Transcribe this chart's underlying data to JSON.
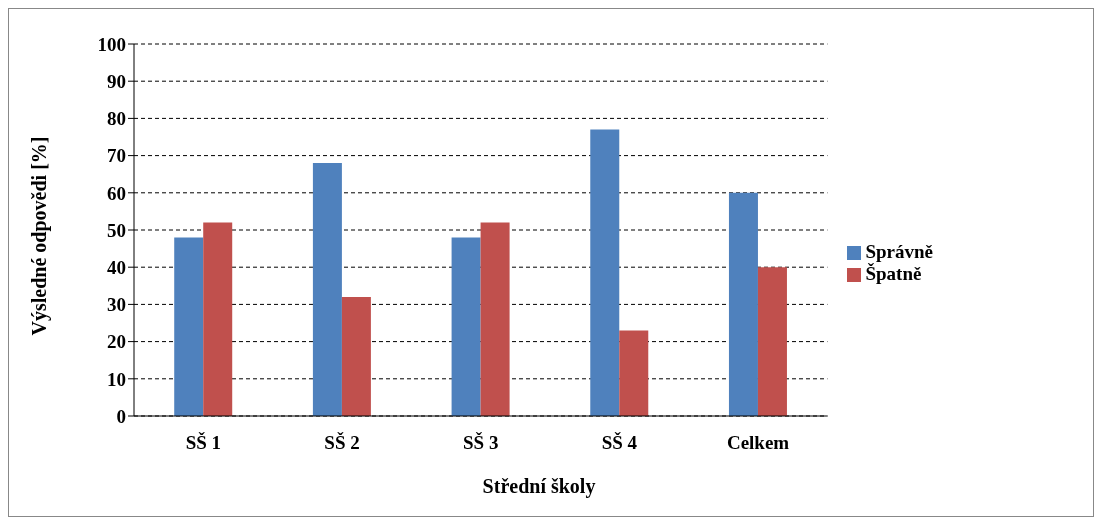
{
  "chart_data": {
    "type": "bar",
    "xlabel": "Střední školy",
    "ylabel": "Výsledné odpovědi [%]",
    "categories": [
      "SŠ 1",
      "SŠ 2",
      "SŠ 3",
      "SŠ 4",
      "Celkem"
    ],
    "series": [
      {
        "name": "Správně",
        "color": "#4f81bd",
        "values": [
          48,
          68,
          48,
          77,
          60
        ]
      },
      {
        "name": "Špatně",
        "color": "#c0504d",
        "values": [
          52,
          32,
          52,
          23,
          40
        ]
      }
    ],
    "ylim": [
      0,
      100
    ],
    "yticks": [
      0,
      10,
      20,
      30,
      40,
      50,
      60,
      70,
      80,
      90,
      100
    ],
    "grid": "y",
    "legend": "right"
  }
}
